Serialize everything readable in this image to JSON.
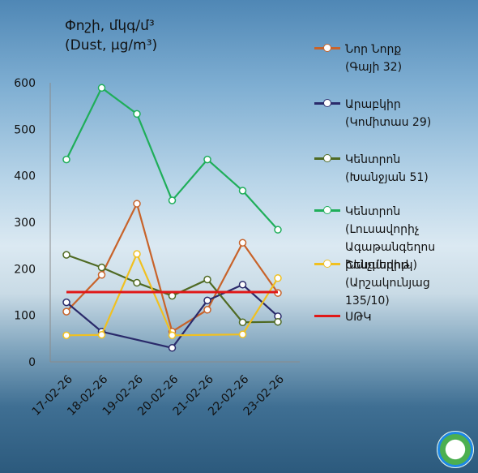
{
  "title": {
    "line1": "Փոշի, մկգ/մ³",
    "line2": "(Dust, µg/m³)"
  },
  "legend": [
    {
      "label": "Նոր Նորք",
      "sub": "(Գայի 32)"
    },
    {
      "label": "Արաբկիր",
      "sub": "(Կոմիտաս 29)"
    },
    {
      "label": "Կենտրոն",
      "sub": "(Խանջյան 51)"
    },
    {
      "label": "Կենտրոն (Լուսավորիչ",
      "sub": "Ագաթանգեղոս",
      "sub2": "խաչմերուկ)"
    },
    {
      "label": "Շենգավիթ",
      "sub": "(Արշակունյաց 135/10)"
    },
    {
      "label": "ՍԹԿ"
    }
  ],
  "logo": {
    "name": "ministry-emblem-icon"
  },
  "chart_data": {
    "type": "line",
    "categories": [
      "17-02-26",
      "18-02-26",
      "19-02-26",
      "20-02-26",
      "21-02-26",
      "22-02-26",
      "23-02-26"
    ],
    "ylim": [
      0,
      600
    ],
    "yticks": [
      0,
      100,
      200,
      300,
      400,
      500,
      600
    ],
    "grid": false,
    "legend_position": "right",
    "series": [
      {
        "name": "Նոր Նորք (Գայի 32)",
        "color": "#c8632a",
        "values": [
          108,
          187,
          340,
          65,
          112,
          256,
          148
        ]
      },
      {
        "name": "Արաբկիր (Կոմիտաս 29)",
        "color": "#2a2a6a",
        "values": [
          128,
          65,
          null,
          30,
          132,
          166,
          98
        ]
      },
      {
        "name": "Կենտրոն (Խանջյան 51)",
        "color": "#4f6a23",
        "values": [
          230,
          203,
          170,
          142,
          177,
          85,
          86
        ]
      },
      {
        "name": "Կենտրոն (Լուսավորիչ Ագաթանգեղոս խաչմերուկ)",
        "color": "#1fae5a",
        "values": [
          435,
          589,
          533,
          347,
          435,
          368,
          284
        ]
      },
      {
        "name": "Շենգավիթ (Արշակունյաց 135/10)",
        "color": "#f0c020",
        "values": [
          57,
          58,
          232,
          57,
          null,
          59,
          180
        ]
      },
      {
        "name": "ՍԹԿ",
        "color": "#e01818",
        "values": [
          150,
          150,
          150,
          150,
          150,
          150,
          150
        ],
        "markers": false
      }
    ]
  }
}
